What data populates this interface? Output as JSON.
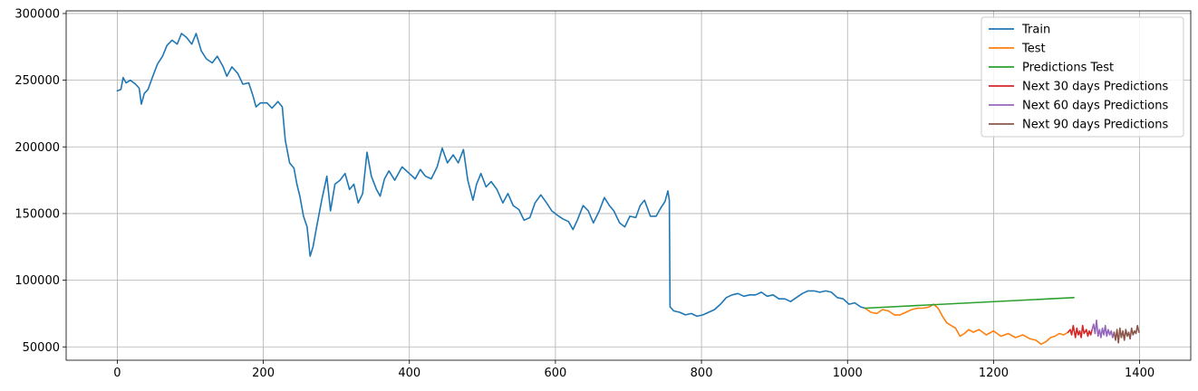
{
  "chart_data": {
    "type": "line",
    "title": "",
    "xlabel": "",
    "ylabel": "",
    "xlim": [
      -70,
      1470
    ],
    "ylim": [
      40000,
      302000
    ],
    "grid": true,
    "legend_position": "top-right",
    "x_ticks": [
      0,
      200,
      400,
      600,
      800,
      1000,
      1200,
      1400
    ],
    "y_ticks": [
      50000,
      100000,
      150000,
      200000,
      250000,
      300000
    ],
    "series": [
      {
        "name": "Train",
        "color": "#1f77b4",
        "points": [
          [
            0,
            242000
          ],
          [
            5,
            243000
          ],
          [
            8,
            252000
          ],
          [
            12,
            248000
          ],
          [
            18,
            250000
          ],
          [
            25,
            247000
          ],
          [
            30,
            244000
          ],
          [
            33,
            232000
          ],
          [
            37,
            240000
          ],
          [
            42,
            243000
          ],
          [
            48,
            252000
          ],
          [
            55,
            262000
          ],
          [
            62,
            268000
          ],
          [
            68,
            276000
          ],
          [
            75,
            280000
          ],
          [
            82,
            277000
          ],
          [
            88,
            285000
          ],
          [
            95,
            282000
          ],
          [
            102,
            277000
          ],
          [
            108,
            285000
          ],
          [
            115,
            272000
          ],
          [
            122,
            266000
          ],
          [
            130,
            263000
          ],
          [
            137,
            268000
          ],
          [
            145,
            260000
          ],
          [
            150,
            253000
          ],
          [
            157,
            260000
          ],
          [
            165,
            255000
          ],
          [
            172,
            247000
          ],
          [
            180,
            248000
          ],
          [
            186,
            238000
          ],
          [
            190,
            230000
          ],
          [
            196,
            233000
          ],
          [
            205,
            233000
          ],
          [
            212,
            229000
          ],
          [
            220,
            234000
          ],
          [
            226,
            230000
          ],
          [
            230,
            205000
          ],
          [
            236,
            188000
          ],
          [
            242,
            184000
          ],
          [
            246,
            172000
          ],
          [
            250,
            163000
          ],
          [
            255,
            148000
          ],
          [
            260,
            140000
          ],
          [
            264,
            118000
          ],
          [
            268,
            125000
          ],
          [
            273,
            140000
          ],
          [
            280,
            160000
          ],
          [
            287,
            178000
          ],
          [
            292,
            152000
          ],
          [
            298,
            172000
          ],
          [
            305,
            175000
          ],
          [
            312,
            180000
          ],
          [
            318,
            168000
          ],
          [
            324,
            172000
          ],
          [
            330,
            158000
          ],
          [
            336,
            165000
          ],
          [
            342,
            196000
          ],
          [
            348,
            178000
          ],
          [
            355,
            168000
          ],
          [
            360,
            163000
          ],
          [
            366,
            176000
          ],
          [
            372,
            182000
          ],
          [
            380,
            175000
          ],
          [
            390,
            185000
          ],
          [
            400,
            180000
          ],
          [
            408,
            176000
          ],
          [
            415,
            183000
          ],
          [
            422,
            178000
          ],
          [
            430,
            176000
          ],
          [
            438,
            185000
          ],
          [
            445,
            199000
          ],
          [
            452,
            188000
          ],
          [
            460,
            194000
          ],
          [
            467,
            188000
          ],
          [
            474,
            198000
          ],
          [
            480,
            175000
          ],
          [
            487,
            160000
          ],
          [
            492,
            172000
          ],
          [
            498,
            180000
          ],
          [
            505,
            170000
          ],
          [
            512,
            174000
          ],
          [
            520,
            168000
          ],
          [
            528,
            158000
          ],
          [
            535,
            165000
          ],
          [
            542,
            156000
          ],
          [
            550,
            153000
          ],
          [
            557,
            145000
          ],
          [
            565,
            147000
          ],
          [
            572,
            158000
          ],
          [
            580,
            164000
          ],
          [
            588,
            158000
          ],
          [
            595,
            152000
          ],
          [
            602,
            149000
          ],
          [
            610,
            146000
          ],
          [
            618,
            144000
          ],
          [
            624,
            138000
          ],
          [
            630,
            145000
          ],
          [
            638,
            156000
          ],
          [
            645,
            152000
          ],
          [
            652,
            143000
          ],
          [
            660,
            152000
          ],
          [
            667,
            162000
          ],
          [
            674,
            156000
          ],
          [
            680,
            152000
          ],
          [
            688,
            143000
          ],
          [
            695,
            140000
          ],
          [
            702,
            148000
          ],
          [
            710,
            147000
          ],
          [
            716,
            156000
          ],
          [
            722,
            160000
          ],
          [
            730,
            148000
          ],
          [
            738,
            148000
          ],
          [
            744,
            154000
          ],
          [
            750,
            159000
          ],
          [
            754,
            167000
          ],
          [
            756,
            160000
          ],
          [
            757,
            80000
          ],
          [
            762,
            77000
          ],
          [
            770,
            76000
          ],
          [
            778,
            74000
          ],
          [
            786,
            75000
          ],
          [
            794,
            73000
          ],
          [
            802,
            74000
          ],
          [
            810,
            76000
          ],
          [
            818,
            78000
          ],
          [
            826,
            82000
          ],
          [
            834,
            87000
          ],
          [
            842,
            89000
          ],
          [
            850,
            90000
          ],
          [
            858,
            88000
          ],
          [
            866,
            89000
          ],
          [
            874,
            89000
          ],
          [
            882,
            91000
          ],
          [
            890,
            88000
          ],
          [
            898,
            89000
          ],
          [
            906,
            86000
          ],
          [
            914,
            86000
          ],
          [
            922,
            84000
          ],
          [
            930,
            87000
          ],
          [
            938,
            90000
          ],
          [
            946,
            92000
          ],
          [
            954,
            92000
          ],
          [
            962,
            91000
          ],
          [
            970,
            92000
          ],
          [
            978,
            91000
          ],
          [
            986,
            87000
          ],
          [
            994,
            86000
          ],
          [
            1002,
            82000
          ],
          [
            1010,
            83000
          ],
          [
            1018,
            80000
          ],
          [
            1024,
            79000
          ]
        ]
      },
      {
        "name": "Test",
        "color": "#ff7f0e",
        "points": [
          [
            1024,
            79000
          ],
          [
            1032,
            76000
          ],
          [
            1040,
            75000
          ],
          [
            1048,
            78000
          ],
          [
            1056,
            77000
          ],
          [
            1064,
            74000
          ],
          [
            1072,
            74000
          ],
          [
            1080,
            76000
          ],
          [
            1088,
            78000
          ],
          [
            1096,
            79000
          ],
          [
            1104,
            79000
          ],
          [
            1112,
            80000
          ],
          [
            1118,
            82000
          ],
          [
            1124,
            79000
          ],
          [
            1130,
            73000
          ],
          [
            1136,
            68000
          ],
          [
            1142,
            66000
          ],
          [
            1148,
            64000
          ],
          [
            1154,
            58000
          ],
          [
            1160,
            60000
          ],
          [
            1166,
            63000
          ],
          [
            1172,
            61000
          ],
          [
            1180,
            63000
          ],
          [
            1190,
            59000
          ],
          [
            1200,
            62000
          ],
          [
            1210,
            58000
          ],
          [
            1220,
            60000
          ],
          [
            1230,
            57000
          ],
          [
            1240,
            59000
          ],
          [
            1250,
            56000
          ],
          [
            1258,
            55000
          ],
          [
            1265,
            52000
          ],
          [
            1272,
            54000
          ],
          [
            1278,
            57000
          ],
          [
            1284,
            58000
          ],
          [
            1290,
            60000
          ],
          [
            1296,
            59000
          ],
          [
            1302,
            61000
          ]
        ]
      },
      {
        "name": "Predictions Test",
        "color": "#2ca02c",
        "points": [
          [
            1024,
            79000
          ],
          [
            1310,
            87000
          ]
        ]
      },
      {
        "name": "Next 30 days Predictions",
        "color": "#d62728",
        "points": [
          [
            1302,
            61000
          ],
          [
            1305,
            63000
          ],
          [
            1307,
            59000
          ],
          [
            1309,
            66000
          ],
          [
            1312,
            57000
          ],
          [
            1314,
            64000
          ],
          [
            1316,
            59000
          ],
          [
            1318,
            62000
          ],
          [
            1320,
            57000
          ],
          [
            1322,
            66000
          ],
          [
            1324,
            60000
          ],
          [
            1327,
            63000
          ],
          [
            1329,
            58000
          ],
          [
            1331,
            62000
          ],
          [
            1333,
            59000
          ],
          [
            1335,
            63000
          ]
        ]
      },
      {
        "name": "Next 60 days Predictions",
        "color": "#9467bd",
        "points": [
          [
            1335,
            63000
          ],
          [
            1337,
            67000
          ],
          [
            1339,
            60000
          ],
          [
            1341,
            70000
          ],
          [
            1343,
            58000
          ],
          [
            1345,
            63000
          ],
          [
            1347,
            57000
          ],
          [
            1349,
            64000
          ],
          [
            1351,
            59000
          ],
          [
            1353,
            66000
          ],
          [
            1355,
            58000
          ],
          [
            1357,
            63000
          ],
          [
            1359,
            59000
          ],
          [
            1361,
            62000
          ],
          [
            1363,
            57000
          ],
          [
            1365,
            61000
          ]
        ]
      },
      {
        "name": "Next 90 days Predictions",
        "color": "#8c564b",
        "points": [
          [
            1365,
            61000
          ],
          [
            1367,
            55000
          ],
          [
            1369,
            63000
          ],
          [
            1371,
            53000
          ],
          [
            1373,
            64000
          ],
          [
            1375,
            57000
          ],
          [
            1377,
            62000
          ],
          [
            1379,
            55000
          ],
          [
            1381,
            63000
          ],
          [
            1383,
            58000
          ],
          [
            1385,
            61000
          ],
          [
            1387,
            56000
          ],
          [
            1389,
            64000
          ],
          [
            1391,
            59000
          ],
          [
            1393,
            62000
          ],
          [
            1395,
            60000
          ],
          [
            1397,
            66000
          ],
          [
            1399,
            61000
          ]
        ]
      }
    ]
  }
}
